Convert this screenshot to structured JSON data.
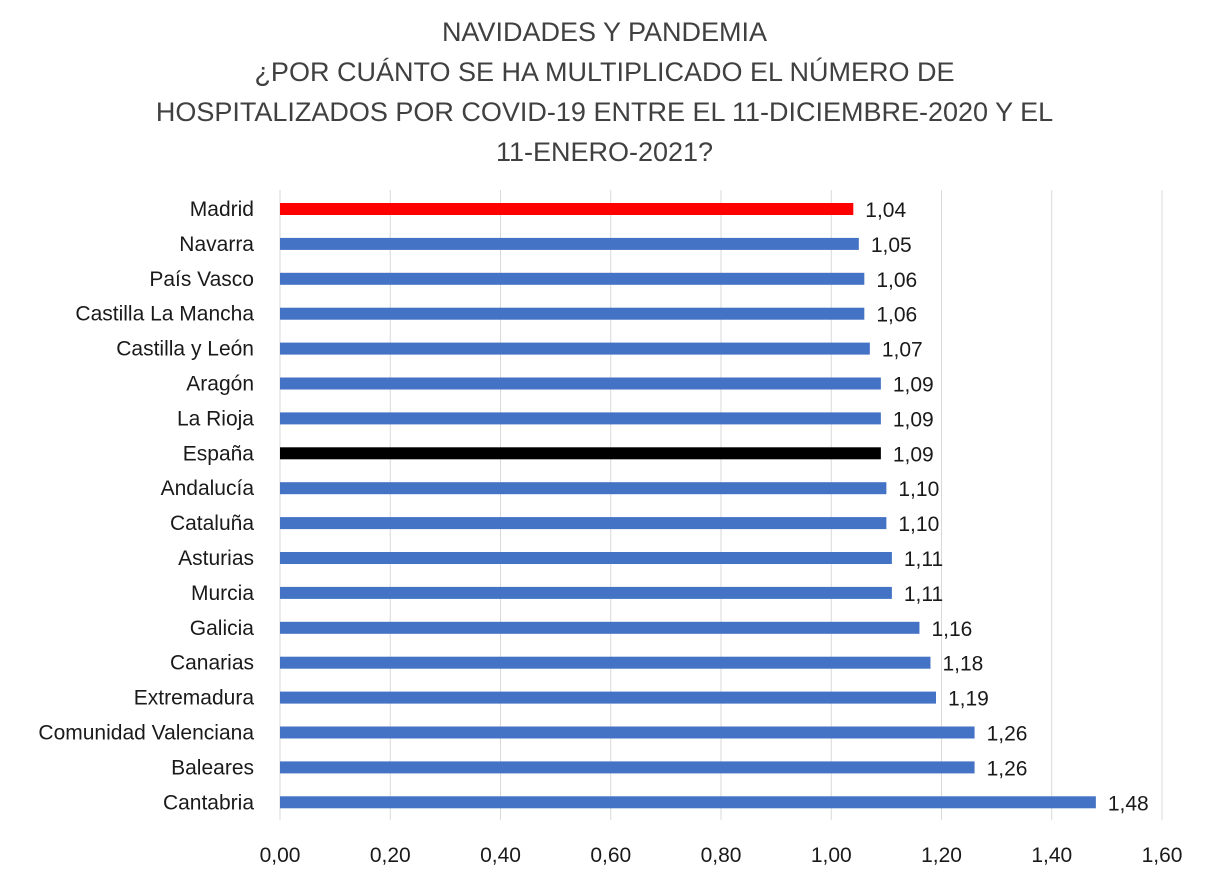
{
  "chart_data": {
    "type": "bar",
    "orientation": "horizontal",
    "title_lines": [
      "NAVIDADES Y PANDEMIA",
      "¿POR CUÁNTO SE HA MULTIPLICADO EL NÚMERO DE",
      "HOSPITALIZADOS POR COVID-19 ENTRE EL 11-DICIEMBRE-2020 Y EL",
      "11-ENERO-2021?"
    ],
    "categories": [
      "Madrid",
      "Navarra",
      "País Vasco",
      "Castilla La Mancha",
      "Castilla y León",
      "Aragón",
      "La Rioja",
      "España",
      "Andalucía",
      "Cataluña",
      "Asturias",
      "Murcia",
      "Galicia",
      "Canarias",
      "Extremadura",
      "Comunidad Valenciana",
      "Baleares",
      "Cantabria"
    ],
    "values": [
      1.04,
      1.05,
      1.06,
      1.06,
      1.07,
      1.09,
      1.09,
      1.09,
      1.1,
      1.1,
      1.11,
      1.11,
      1.16,
      1.18,
      1.19,
      1.26,
      1.26,
      1.48
    ],
    "data_labels": [
      "1,04",
      "1,05",
      "1,06",
      "1,06",
      "1,07",
      "1,09",
      "1,09",
      "1,09",
      "1,10",
      "1,10",
      "1,11",
      "1,11",
      "1,16",
      "1,18",
      "1,19",
      "1,26",
      "1,26",
      "1,48"
    ],
    "bar_colors": [
      "#ff0000",
      "#4472c4",
      "#4472c4",
      "#4472c4",
      "#4472c4",
      "#4472c4",
      "#4472c4",
      "#000000",
      "#4472c4",
      "#4472c4",
      "#4472c4",
      "#4472c4",
      "#4472c4",
      "#4472c4",
      "#4472c4",
      "#4472c4",
      "#4472c4",
      "#4472c4"
    ],
    "xlim": [
      0,
      1.6
    ],
    "xticks": [
      0,
      0.2,
      0.4,
      0.6,
      0.8,
      1.0,
      1.2,
      1.4,
      1.6
    ],
    "xtick_labels": [
      "0,00",
      "0,20",
      "0,40",
      "0,60",
      "0,80",
      "1,00",
      "1,20",
      "1,40",
      "1,60"
    ],
    "grid": "vertical",
    "colors": {
      "default_bar": "#4472c4",
      "madrid_bar": "#ff0000",
      "espana_bar": "#000000",
      "grid": "#d9d9d9"
    }
  }
}
